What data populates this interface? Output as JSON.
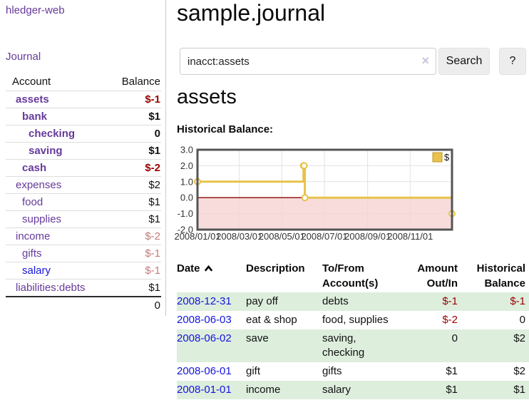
{
  "colors": {
    "link_purple": "#663a9b",
    "link_blue": "#1414dd",
    "negative_strong": "#990000",
    "negative_soft": "#c47a7a",
    "row_green": "#ddeedd",
    "series_yellow": "#e8c24a",
    "legend_swatch_border": "#c0992b",
    "negative_region": "#f6d3d3",
    "zero_line": "#8b0000",
    "chart_border": "#545454",
    "gridline": "#e2e2e2"
  },
  "sidebar": {
    "brand": "hledger-web",
    "nav_journal": "Journal",
    "accounts": {
      "header_account": "Account",
      "header_balance": "Balance",
      "rows": [
        {
          "account": "assets",
          "balance": "$-1",
          "indent": 0,
          "bold": true
        },
        {
          "account": "bank",
          "balance": "$1",
          "indent": 1,
          "bold": true
        },
        {
          "account": "checking",
          "balance": "0",
          "indent": 2,
          "bold": true
        },
        {
          "account": "saving",
          "balance": "$1",
          "indent": 2,
          "bold": true
        },
        {
          "account": "cash",
          "balance": "$-2",
          "indent": 1,
          "bold": true
        },
        {
          "account": "expenses",
          "balance": "$2",
          "indent": 0,
          "bold": false
        },
        {
          "account": "food",
          "balance": "$1",
          "indent": 1,
          "bold": false
        },
        {
          "account": "supplies",
          "balance": "$1",
          "indent": 1,
          "bold": false
        },
        {
          "account": "income",
          "balance": "$-2",
          "indent": 0,
          "bold": false
        },
        {
          "account": "gifts",
          "balance": "$-1",
          "indent": 1,
          "bold": false
        },
        {
          "account": "salary",
          "balance": "$-1",
          "indent": 1,
          "bold": false,
          "link_style": "blue"
        },
        {
          "account": "liabilities:debts",
          "balance": "$1",
          "indent": 0,
          "bold": false
        }
      ],
      "total": "0"
    }
  },
  "main": {
    "title": "sample.journal",
    "search": {
      "value": "inacct:assets",
      "clear_icon": "×",
      "search_button": "Search",
      "help_button": "?"
    },
    "account_heading": "assets",
    "chart_heading": "Historical Balance:",
    "register": {
      "headers": {
        "date": "Date",
        "sort_icon": "chevron-up",
        "description": "Description",
        "accounts": "To/From Account(s)",
        "amount": "Amount Out/In",
        "balance": "Historical Balance"
      },
      "rows": [
        {
          "date": "2008-12-31",
          "description": "pay off",
          "accounts": "debts",
          "amount": "$-1",
          "balance": "$-1"
        },
        {
          "date": "2008-06-03",
          "description": "eat & shop",
          "accounts": "food, supplies",
          "amount": "$-2",
          "balance": "0"
        },
        {
          "date": "2008-06-02",
          "description": "save",
          "accounts": "saving,\nchecking",
          "amount": "0",
          "balance": "$2"
        },
        {
          "date": "2008-06-01",
          "description": "gift",
          "accounts": "gifts",
          "amount": "$1",
          "balance": "$2"
        },
        {
          "date": "2008-01-01",
          "description": "income",
          "accounts": "salary",
          "amount": "$1",
          "balance": "$1"
        }
      ]
    }
  },
  "chart_data": {
    "type": "line",
    "step": true,
    "title": "Historical Balance:",
    "series": [
      {
        "name": "$",
        "points": [
          [
            "2008-01-01",
            1
          ],
          [
            "2008-06-01",
            2
          ],
          [
            "2008-06-02",
            2
          ],
          [
            "2008-06-03",
            0
          ],
          [
            "2008-12-31",
            -1
          ]
        ]
      }
    ],
    "x_range": [
      "2008-01-01",
      "2008-12-31"
    ],
    "x_tick_dates": [
      "2008-01-01",
      "2008-03-01",
      "2008-05-01",
      "2008-07-01",
      "2008-09-01",
      "2008-11-01"
    ],
    "x_tick_labels": [
      "2008/01/01",
      "2008/03/01",
      "2008/05/01",
      "2008/07/01",
      "2008/09/01",
      "2008/11/01"
    ],
    "y_ticks": [
      "3.0",
      "2.0",
      "1.0",
      "0.0",
      "-1.0",
      "-2.0"
    ],
    "ylim": [
      -2,
      3
    ],
    "legend": {
      "label": "$",
      "position": "top-right"
    },
    "grid": true,
    "negative_region": true
  }
}
